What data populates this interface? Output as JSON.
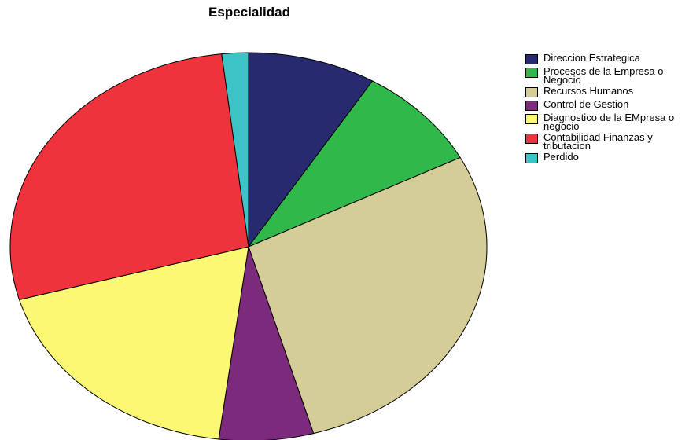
{
  "chart_data": {
    "type": "pie",
    "title": "Especialidad",
    "legend_position": "right",
    "slices": [
      {
        "label": "Direccion Estrategica",
        "value": 8.7,
        "color": "#272a6e"
      },
      {
        "label": "Procesos de la Empresa o Negocio",
        "value": 8.7,
        "color": "#30b84a"
      },
      {
        "label": "Recursos Humanos",
        "value": 28.2,
        "color": "#d4cd97"
      },
      {
        "label": "Control de Gestion",
        "value": 6.4,
        "color": "#7b2a7c"
      },
      {
        "label": "Diagnostico de la EMpresa o negocio",
        "value": 18.6,
        "color": "#fbf874"
      },
      {
        "label": "Contabilidad Finanzas y tributacion",
        "value": 27.6,
        "color": "#ef333d"
      },
      {
        "label": "Perdido",
        "value": 1.8,
        "color": "#3cc3c6"
      }
    ]
  }
}
